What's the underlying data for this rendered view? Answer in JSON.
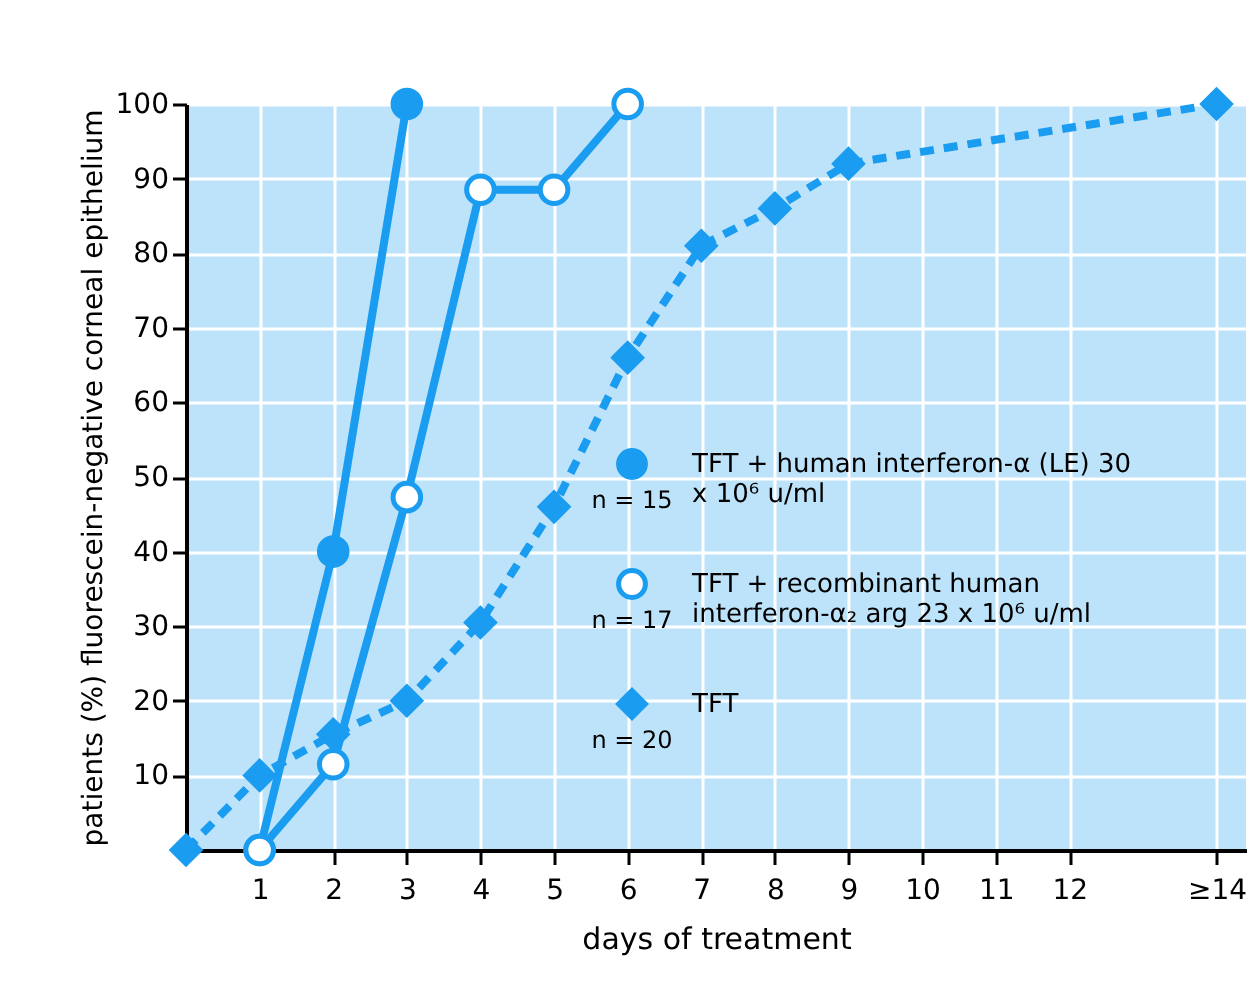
{
  "chart_data": {
    "type": "line",
    "xlabel": "days of treatment",
    "ylabel": "patients (%) fluorescein-negative corneal epithelium",
    "xlim": [
      0,
      14.4
    ],
    "ylim": [
      0,
      100
    ],
    "xticks": [
      1,
      2,
      3,
      4,
      5,
      6,
      7,
      8,
      9,
      10,
      11,
      12,
      {
        "value": 14,
        "label": "≥14"
      }
    ],
    "yticks": [
      10,
      20,
      30,
      40,
      50,
      60,
      70,
      80,
      90,
      100
    ],
    "grid": true,
    "legend": "right",
    "series": [
      {
        "name": "TFT + human interferon-α (LE) 30 x 10⁶ u/ml",
        "color": "#1a9cf0",
        "marker": "circle",
        "line_style": "solid",
        "x": [
          1,
          2,
          3
        ],
        "values": [
          0,
          40,
          100
        ]
      },
      {
        "name": "TFT + recombinant human interferon-α₂ arg 23 x 10⁶ u/ml",
        "color": "#1a9cf0",
        "marker": "circle",
        "line_style": "solid",
        "x": [
          1,
          2,
          3,
          4,
          5,
          6
        ],
        "values": [
          0,
          11.5,
          47.3,
          88.5,
          88.5,
          100
        ]
      },
      {
        "name": "TFT",
        "color": "#1a9cf0",
        "marker": "diamond",
        "line_style": "dashed",
        "x": [
          0,
          1,
          2,
          3,
          4,
          5,
          6,
          7,
          8,
          9,
          14
        ],
        "values": [
          0,
          10,
          15.5,
          20,
          30.5,
          46,
          66,
          81,
          86,
          92,
          100
        ]
      }
    ],
    "annotations": [
      "n = 15",
      "n = 17",
      "n = 20"
    ]
  }
}
